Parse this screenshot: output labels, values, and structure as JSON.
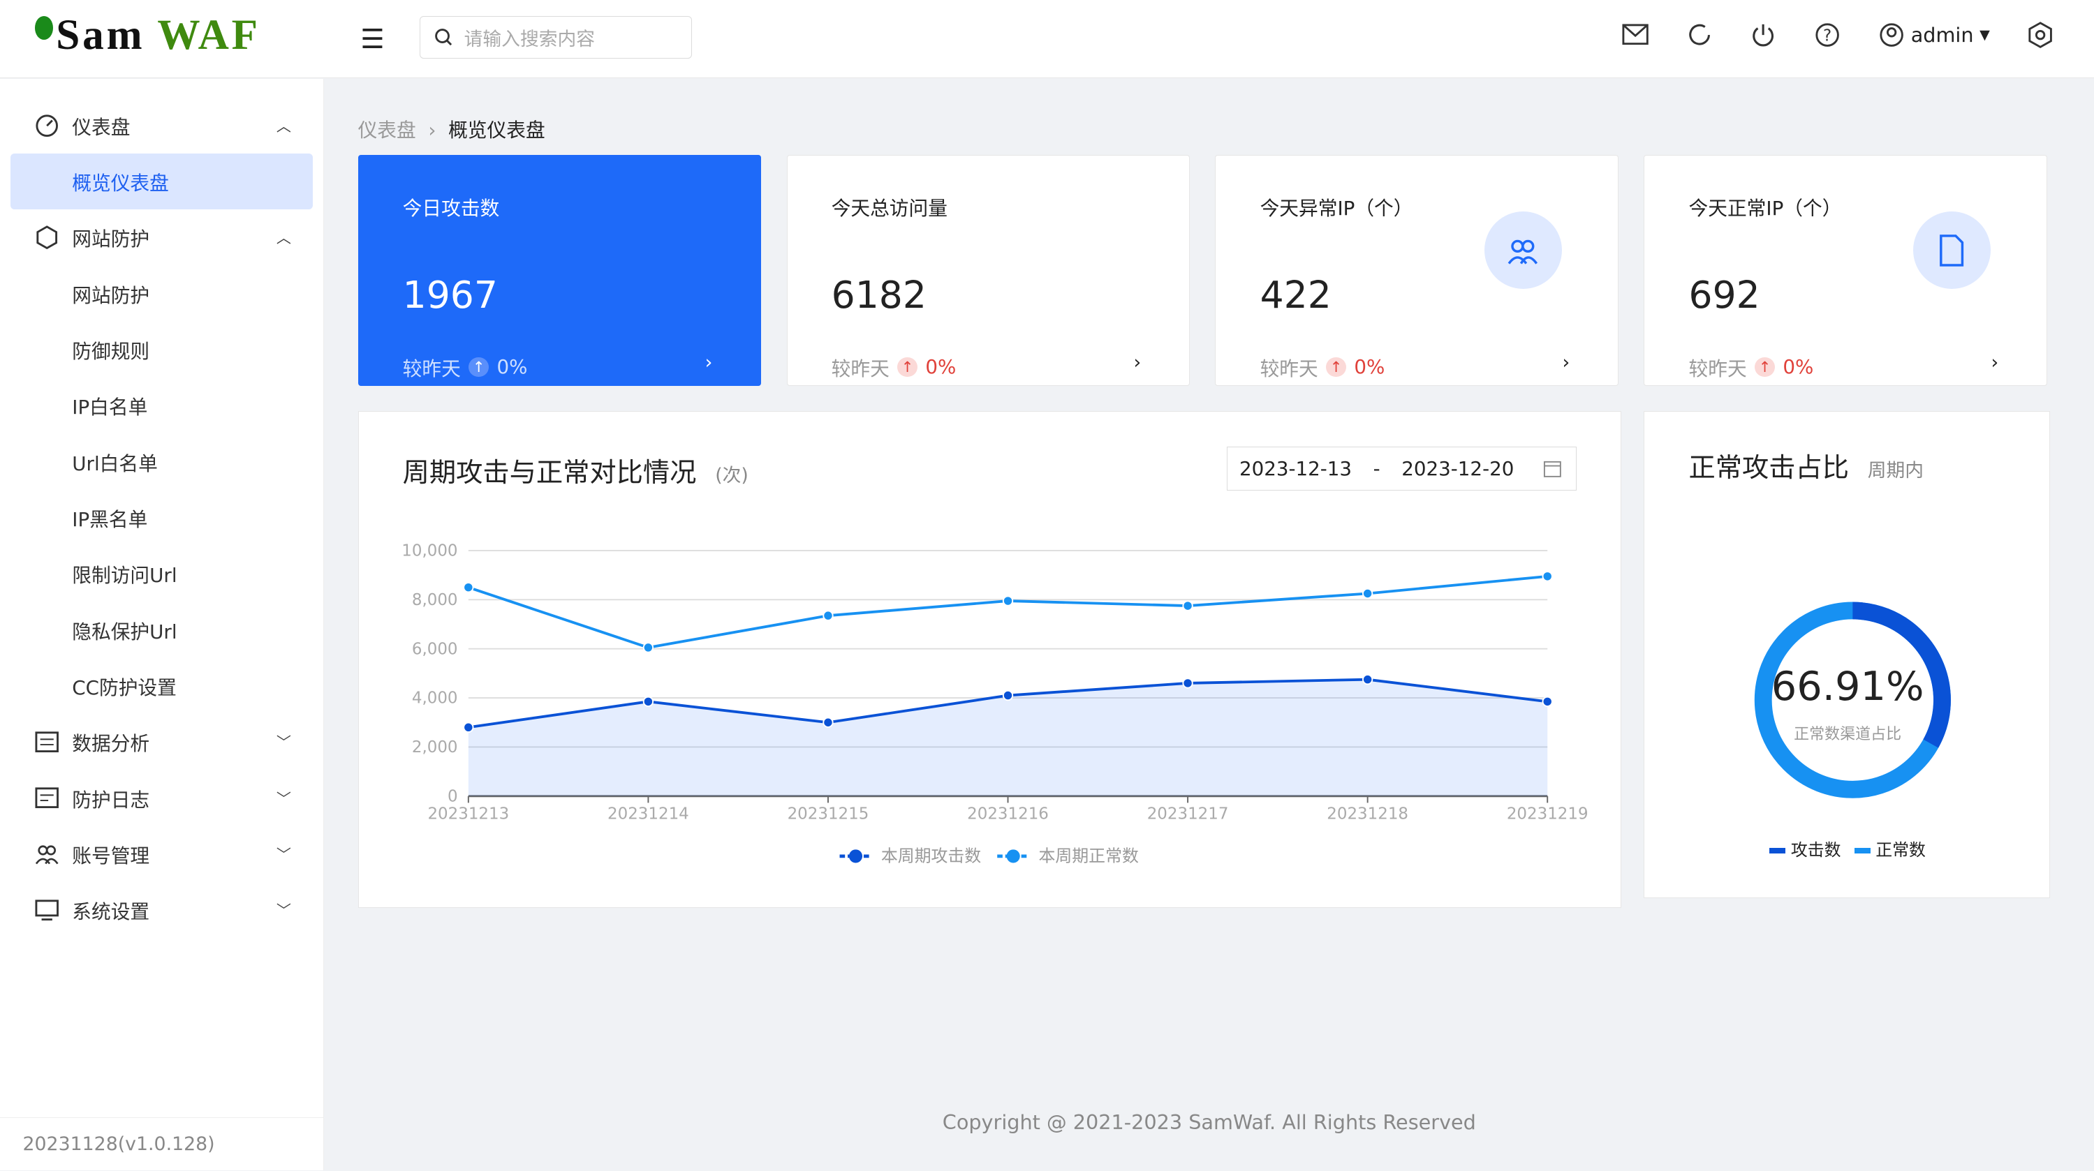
{
  "header": {
    "logo_sam": "Sam",
    "logo_waf": "WAF",
    "search_placeholder": "请输入搜索内容",
    "user": "admin"
  },
  "sidebar": {
    "items": [
      {
        "label": "仪表盘",
        "group": true,
        "icon": "dashboard-icon",
        "chev": "^"
      },
      {
        "label": "概览仪表盘",
        "active": true
      },
      {
        "label": "网站防护",
        "group": true,
        "icon": "shield-icon",
        "chev": "^"
      },
      {
        "label": "网站防护"
      },
      {
        "label": "防御规则"
      },
      {
        "label": "IP白名单"
      },
      {
        "label": "Url白名单"
      },
      {
        "label": "IP黑名单"
      },
      {
        "label": "限制访问Url"
      },
      {
        "label": "隐私保护Url"
      },
      {
        "label": "CC防护设置"
      },
      {
        "label": "数据分析",
        "group": true,
        "icon": "chart-icon",
        "chev": "v"
      },
      {
        "label": "防护日志",
        "group": true,
        "icon": "log-icon",
        "chev": "v"
      },
      {
        "label": "账号管理",
        "group": true,
        "icon": "users-icon",
        "chev": "v"
      },
      {
        "label": "系统设置",
        "group": true,
        "icon": "settings-icon",
        "chev": "v"
      }
    ],
    "version": "20231128(v1.0.128)"
  },
  "breadcrumb": [
    "仪表盘",
    "概览仪表盘"
  ],
  "cards": [
    {
      "title": "今日攻击数",
      "value": "1967",
      "compare": "较昨天",
      "pct": "0%"
    },
    {
      "title": "今天总访问量",
      "value": "6182",
      "compare": "较昨天",
      "pct": "0%"
    },
    {
      "title": "今天异常IP（个）",
      "value": "422",
      "compare": "较昨天",
      "pct": "0%",
      "icon": "users-icon"
    },
    {
      "title": "今天正常IP（个）",
      "value": "692",
      "compare": "较昨天",
      "pct": "0%",
      "icon": "file-icon"
    }
  ],
  "trend": {
    "title": "周期攻击与正常对比情况",
    "unit": "(次)",
    "date_start": "2023-12-13",
    "date_sep": "-",
    "date_end": "2023-12-20"
  },
  "ratio": {
    "title": "正常攻击占比",
    "subtitle": "周期内",
    "value": "66.91%",
    "label": "正常数渠道占比",
    "legend": [
      "攻击数",
      "正常数"
    ],
    "percent": 66.91
  },
  "colors": {
    "attack": "#0a52d6",
    "normal": "#1791f2",
    "accent": "#1e6af9"
  },
  "chart_data": {
    "type": "line",
    "categories": [
      "20231213",
      "20231214",
      "20231215",
      "20231216",
      "20231217",
      "20231218",
      "20231219"
    ],
    "ylim": [
      0,
      10000
    ],
    "yticks": [
      "0",
      "2,000",
      "4,000",
      "6,000",
      "8,000",
      "10,000"
    ],
    "grid": true,
    "legend": "bottom",
    "series": [
      {
        "name": "本周期攻击数",
        "values": [
          2800,
          3850,
          3000,
          4100,
          4600,
          4750,
          3850
        ],
        "area": true
      },
      {
        "name": "本周期正常数",
        "values": [
          8500,
          6050,
          7350,
          7950,
          7750,
          8250,
          8950
        ]
      }
    ]
  },
  "footer": "Copyright @ 2021-2023 SamWaf. All Rights Reserved"
}
